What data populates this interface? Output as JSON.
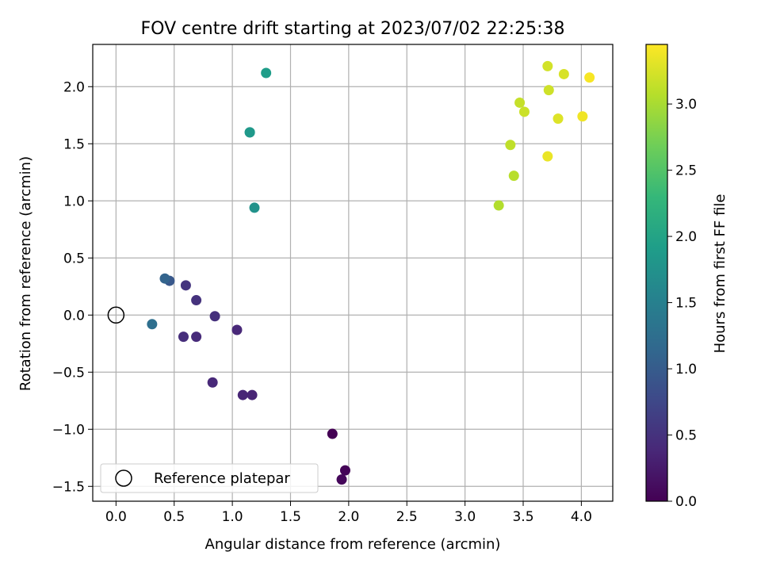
{
  "chart_data": {
    "type": "scatter",
    "title": "FOV centre drift starting at 2023/07/02 22:25:38",
    "xlabel": "Angular distance from reference (arcmin)",
    "ylabel": "Rotation from reference (arcmin)",
    "xlim": [
      -0.2,
      4.27
    ],
    "ylim": [
      -1.63,
      2.37
    ],
    "xticks": [
      0.0,
      0.5,
      1.0,
      1.5,
      2.0,
      2.5,
      3.0,
      3.5,
      4.0
    ],
    "yticks": [
      -1.5,
      -1.0,
      -0.5,
      0.0,
      0.5,
      1.0,
      1.5,
      2.0
    ],
    "xtick_labels": [
      "0.0",
      "0.5",
      "1.0",
      "1.5",
      "2.0",
      "2.5",
      "3.0",
      "3.5",
      "4.0"
    ],
    "ytick_labels": [
      "−1.5",
      "−1.0",
      "−0.5",
      "0.0",
      "0.5",
      "1.0",
      "1.5",
      "2.0"
    ],
    "grid": true,
    "colormap": "viridis",
    "colorbar": {
      "label": "Hours from first FF file",
      "range": [
        0.0,
        3.45
      ],
      "ticks": [
        0.0,
        0.5,
        1.0,
        1.5,
        2.0,
        2.5,
        3.0
      ],
      "tick_labels": [
        "0.0",
        "0.5",
        "1.0",
        "1.5",
        "2.0",
        "2.5",
        "3.0"
      ]
    },
    "reference": {
      "x": 0.0,
      "y": 0.0,
      "label": "Reference platepar"
    },
    "legend_position": "lower-left",
    "points": [
      {
        "x": 1.86,
        "y": -1.04,
        "c": 0.0
      },
      {
        "x": 1.97,
        "y": -1.36,
        "c": 0.03
      },
      {
        "x": 1.94,
        "y": -1.44,
        "c": 0.06
      },
      {
        "x": 1.17,
        "y": -0.7,
        "c": 0.35
      },
      {
        "x": 1.09,
        "y": -0.7,
        "c": 0.36
      },
      {
        "x": 1.04,
        "y": -0.13,
        "c": 0.38
      },
      {
        "x": 0.83,
        "y": -0.59,
        "c": 0.4
      },
      {
        "x": 0.69,
        "y": -0.19,
        "c": 0.42
      },
      {
        "x": 0.58,
        "y": -0.19,
        "c": 0.45
      },
      {
        "x": 0.85,
        "y": -0.01,
        "c": 0.48
      },
      {
        "x": 0.69,
        "y": 0.13,
        "c": 0.5
      },
      {
        "x": 0.6,
        "y": 0.26,
        "c": 0.52
      },
      {
        "x": 0.46,
        "y": 0.3,
        "c": 0.95
      },
      {
        "x": 0.42,
        "y": 0.32,
        "c": 1.1
      },
      {
        "x": 0.31,
        "y": -0.08,
        "c": 1.25
      },
      {
        "x": 1.19,
        "y": 0.94,
        "c": 1.75
      },
      {
        "x": 1.15,
        "y": 1.6,
        "c": 1.8
      },
      {
        "x": 1.15,
        "y": 1.6,
        "c": 1.85
      },
      {
        "x": 1.29,
        "y": 2.12,
        "c": 1.9
      },
      {
        "x": 3.29,
        "y": 0.96,
        "c": 3.05
      },
      {
        "x": 3.42,
        "y": 1.22,
        "c": 3.08
      },
      {
        "x": 3.39,
        "y": 1.49,
        "c": 3.12
      },
      {
        "x": 3.47,
        "y": 1.86,
        "c": 3.15
      },
      {
        "x": 3.51,
        "y": 1.78,
        "c": 3.18
      },
      {
        "x": 3.72,
        "y": 1.97,
        "c": 3.2
      },
      {
        "x": 3.71,
        "y": 2.18,
        "c": 3.22
      },
      {
        "x": 3.85,
        "y": 2.11,
        "c": 3.25
      },
      {
        "x": 3.8,
        "y": 1.72,
        "c": 3.28
      },
      {
        "x": 3.71,
        "y": 1.39,
        "c": 3.35
      },
      {
        "x": 4.01,
        "y": 1.74,
        "c": 3.38
      },
      {
        "x": 4.07,
        "y": 2.08,
        "c": 3.42
      }
    ]
  }
}
